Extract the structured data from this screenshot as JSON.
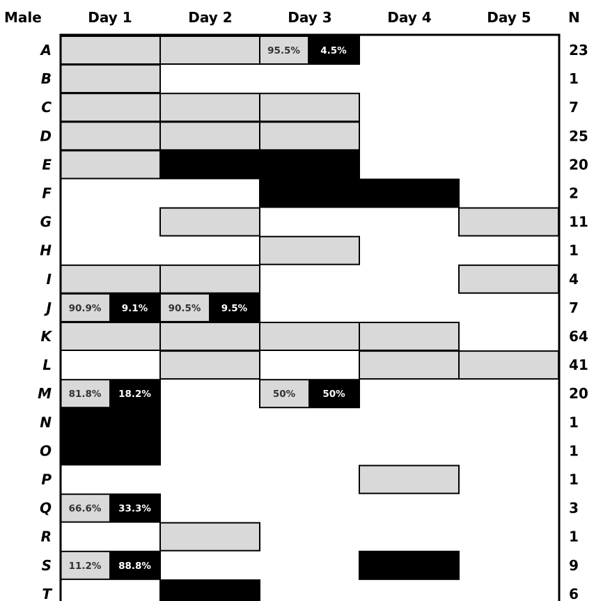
{
  "header": {
    "corner": "Male",
    "days": [
      "Day 1",
      "Day 2",
      "Day 3",
      "Day 4",
      "Day 5"
    ],
    "n": "N"
  },
  "colors": {
    "grey": "#d9d9d9",
    "black": "#000000",
    "white": "#ffffff"
  },
  "chart_data": {
    "type": "table",
    "legend": "none",
    "rows": [
      {
        "label": "A",
        "n": "23",
        "cells": [
          {
            "day": 1,
            "kind": "grey"
          },
          {
            "day": 2,
            "kind": "grey"
          },
          {
            "day": 3,
            "kind": "split",
            "grey_label": "95.5%",
            "black_label": "4.5%",
            "grey_share": 0.48
          }
        ]
      },
      {
        "label": "B",
        "n": "1",
        "cells": [
          {
            "day": 1,
            "kind": "grey"
          }
        ]
      },
      {
        "label": "C",
        "n": "7",
        "cells": [
          {
            "day": 1,
            "kind": "grey"
          },
          {
            "day": 2,
            "kind": "grey"
          },
          {
            "day": 3,
            "kind": "grey"
          }
        ]
      },
      {
        "label": "D",
        "n": "25",
        "cells": [
          {
            "day": 1,
            "kind": "grey"
          },
          {
            "day": 2,
            "kind": "grey"
          },
          {
            "day": 3,
            "kind": "grey"
          }
        ]
      },
      {
        "label": "E",
        "n": "20",
        "cells": [
          {
            "day": 1,
            "kind": "grey"
          },
          {
            "day": 2,
            "kind": "black"
          },
          {
            "day": 3,
            "kind": "black"
          }
        ]
      },
      {
        "label": "F",
        "n": "2",
        "cells": [
          {
            "day": 3,
            "kind": "black"
          },
          {
            "day": 4,
            "kind": "black"
          }
        ]
      },
      {
        "label": "G",
        "n": "11",
        "cells": [
          {
            "day": 2,
            "kind": "grey"
          },
          {
            "day": 5,
            "kind": "grey"
          }
        ]
      },
      {
        "label": "H",
        "n": "1",
        "cells": [
          {
            "day": 3,
            "kind": "grey"
          }
        ]
      },
      {
        "label": "I",
        "n": "4",
        "cells": [
          {
            "day": 1,
            "kind": "grey"
          },
          {
            "day": 2,
            "kind": "grey"
          },
          {
            "day": 5,
            "kind": "grey"
          }
        ]
      },
      {
        "label": "J",
        "n": "7",
        "cells": [
          {
            "day": 1,
            "kind": "split",
            "grey_label": "90.9%",
            "black_label": "9.1%",
            "grey_share": 0.49
          },
          {
            "day": 2,
            "kind": "split",
            "grey_label": "90.5%",
            "black_label": "9.5%",
            "grey_share": 0.49
          }
        ]
      },
      {
        "label": "K",
        "n": "64",
        "cells": [
          {
            "day": 1,
            "kind": "grey"
          },
          {
            "day": 2,
            "kind": "grey"
          },
          {
            "day": 3,
            "kind": "grey"
          },
          {
            "day": 4,
            "kind": "grey"
          }
        ]
      },
      {
        "label": "L",
        "n": "41",
        "cells": [
          {
            "day": 2,
            "kind": "grey"
          },
          {
            "day": 4,
            "kind": "grey"
          },
          {
            "day": 5,
            "kind": "grey"
          }
        ]
      },
      {
        "label": "M",
        "n": "20",
        "cells": [
          {
            "day": 1,
            "kind": "split",
            "grey_label": "81.8%",
            "black_label": "18.2%",
            "grey_share": 0.49
          },
          {
            "day": 3,
            "kind": "split",
            "grey_label": "50%",
            "black_label": "50%",
            "grey_share": 0.49
          }
        ]
      },
      {
        "label": "N",
        "n": "1",
        "cells": [
          {
            "day": 1,
            "kind": "black"
          }
        ]
      },
      {
        "label": "O",
        "n": "1",
        "cells": [
          {
            "day": 1,
            "kind": "black"
          }
        ]
      },
      {
        "label": "P",
        "n": "1",
        "cells": [
          {
            "day": 4,
            "kind": "grey"
          }
        ]
      },
      {
        "label": "Q",
        "n": "3",
        "cells": [
          {
            "day": 1,
            "kind": "split",
            "grey_label": "66.6%",
            "black_label": "33.3%",
            "grey_share": 0.49
          }
        ]
      },
      {
        "label": "R",
        "n": "1",
        "cells": [
          {
            "day": 2,
            "kind": "grey"
          }
        ]
      },
      {
        "label": "S",
        "n": "9",
        "cells": [
          {
            "day": 1,
            "kind": "split",
            "grey_label": "11.2%",
            "black_label": "88.8%",
            "grey_share": 0.49
          },
          {
            "day": 4,
            "kind": "black"
          }
        ]
      },
      {
        "label": "T",
        "n": "6",
        "cells": [
          {
            "day": 2,
            "kind": "black"
          }
        ]
      }
    ]
  }
}
